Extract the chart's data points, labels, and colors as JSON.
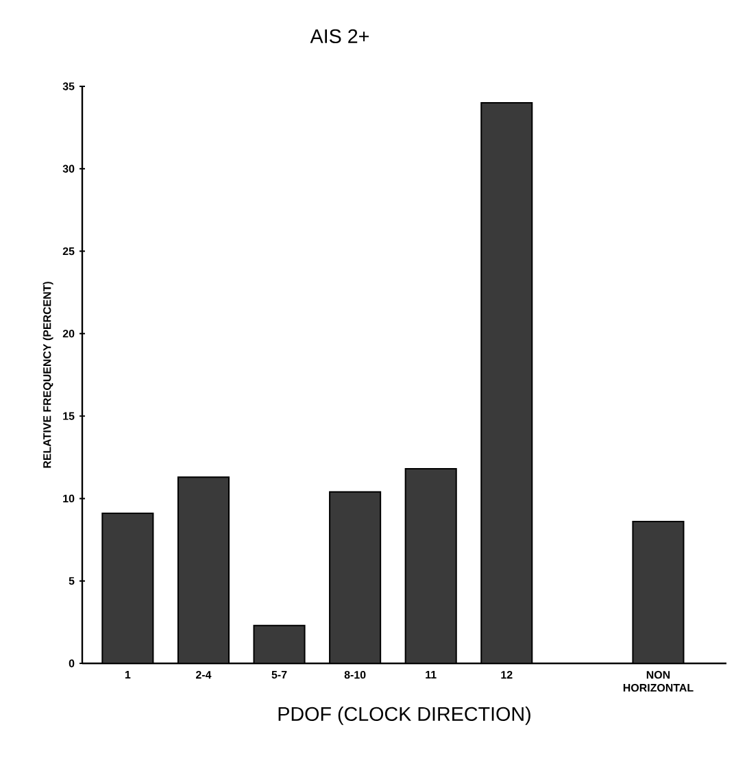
{
  "chart_data": {
    "type": "bar",
    "title": "AIS 2+",
    "xlabel": "PDOF (CLOCK DIRECTION)",
    "ylabel": "RELATIVE FREQUENCY (PERCENT)",
    "categories": [
      "1",
      "2-4",
      "5-7",
      "8-10",
      "11",
      "12",
      null,
      "NON HORIZONTAL"
    ],
    "values": [
      9.1,
      11.3,
      2.3,
      10.4,
      11.8,
      34.0,
      null,
      8.6
    ],
    "color": "#3a3a3a",
    "ylim": [
      0,
      35
    ],
    "yticks": [
      0,
      5,
      10,
      15,
      20,
      25,
      30,
      35
    ],
    "grid": false
  }
}
